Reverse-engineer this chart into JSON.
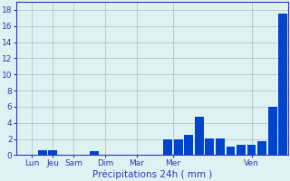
{
  "xlabel": "Précipitations 24h ( mm )",
  "ylim": [
    0,
    19
  ],
  "yticks": [
    0,
    2,
    4,
    6,
    8,
    10,
    12,
    14,
    16,
    18
  ],
  "background_color": "#dff2f2",
  "bar_color": "#0044cc",
  "grid_color": "#aabbbb",
  "day_labels": [
    "Lun",
    "Jeu",
    "Sam",
    "Dim",
    "Mar",
    "Mer",
    "Ven"
  ],
  "tick_color": "#3333bb",
  "xlabel_color": "#3333bb",
  "xlabel_fontsize": 7.5,
  "tick_fontsize": 6.5,
  "bars": [
    0.0,
    0.0,
    0.6,
    0.6,
    0.0,
    0.0,
    0.0,
    0.5,
    0.0,
    0.0,
    0.0,
    0.0,
    0.0,
    0.0,
    2.0,
    2.0,
    2.5,
    4.8,
    2.1,
    2.1,
    1.1,
    1.3,
    1.3,
    1.7,
    6.0,
    17.5
  ],
  "n_bars": 26,
  "day_tick_positions": [
    1.5,
    3.5,
    5.5,
    8.5,
    11.5,
    15.0,
    22.5
  ],
  "xlim": [
    0,
    26
  ]
}
